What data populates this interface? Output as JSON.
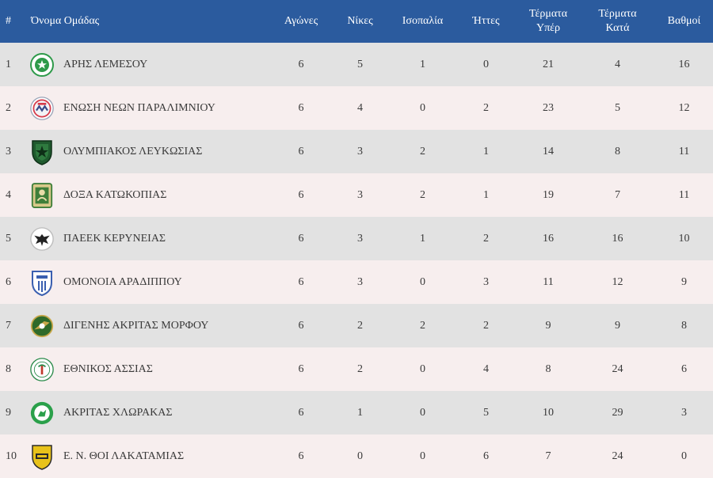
{
  "table": {
    "headers": {
      "rank": "#",
      "team": "Όνομα Ομάδας",
      "played": "Αγώνες",
      "wins": "Νίκες",
      "draws": "Ισοπαλία",
      "losses": "Ήττες",
      "goals_for_1": "Τέρματα",
      "goals_for_2": "Υπέρ",
      "goals_against_1": "Τέρματα",
      "goals_against_2": "Κατά",
      "points": "Βαθμοί"
    },
    "rows": [
      {
        "rank": "1",
        "team": "ΑΡΗΣ ΛΕΜΕΣΟΥ",
        "logo_icon": "aris-limassol-crest-icon",
        "logo_color": "#2e9a4a",
        "played": "6",
        "wins": "5",
        "draws": "1",
        "losses": "0",
        "goals_for": "21",
        "goals_against": "4",
        "points": "16"
      },
      {
        "rank": "2",
        "team": "ΕΝΩΣΗ ΝΕΩΝ ΠΑΡΑΛΙΜΝΙΟΥ",
        "logo_icon": "enp-crest-icon",
        "logo_color": "#d63a4a",
        "played": "6",
        "wins": "4",
        "draws": "0",
        "losses": "2",
        "goals_for": "23",
        "goals_against": "5",
        "points": "12"
      },
      {
        "rank": "3",
        "team": "ΟΛΥΜΠΙΑΚΟΣ ΛΕΥΚΩΣΙΑΣ",
        "logo_icon": "olympiakos-nicosia-crest-icon",
        "logo_color": "#1f5a2e",
        "played": "6",
        "wins": "3",
        "draws": "2",
        "losses": "1",
        "goals_for": "14",
        "goals_against": "8",
        "points": "11"
      },
      {
        "rank": "4",
        "team": "ΔΟΞΑ ΚΑΤΩΚΟΠΙΑΣ",
        "logo_icon": "doxa-katokopias-crest-icon",
        "logo_color": "#3f7f3a",
        "played": "6",
        "wins": "3",
        "draws": "2",
        "losses": "1",
        "goals_for": "19",
        "goals_against": "7",
        "points": "11"
      },
      {
        "rank": "5",
        "team": "ΠΑΕΕΚ ΚΕΡΥΝΕΙΑΣ",
        "logo_icon": "paeek-eagle-crest-icon",
        "logo_color": "#222222",
        "played": "6",
        "wins": "3",
        "draws": "1",
        "losses": "2",
        "goals_for": "16",
        "goals_against": "16",
        "points": "10"
      },
      {
        "rank": "6",
        "team": "ΟΜΟΝΟΙΑ ΑΡΑΔΙΠΠΟΥ",
        "logo_icon": "omonoia-aradippou-crest-icon",
        "logo_color": "#3a5fb0",
        "played": "6",
        "wins": "3",
        "draws": "0",
        "losses": "3",
        "goals_for": "11",
        "goals_against": "12",
        "points": "9"
      },
      {
        "rank": "7",
        "team": "ΔΙΓΕΝΗΣ ΑΚΡΙΤΑΣ ΜΟΡΦΟΥ",
        "logo_icon": "digenis-morfou-crest-icon",
        "logo_color": "#2f6a2a",
        "played": "6",
        "wins": "2",
        "draws": "2",
        "losses": "2",
        "goals_for": "9",
        "goals_against": "9",
        "points": "8"
      },
      {
        "rank": "8",
        "team": "ΕΘΝΙΚΟΣ ΑΣΣΙΑΣ",
        "logo_icon": "ethnikos-assias-crest-icon",
        "logo_color": "#2a8a4a",
        "played": "6",
        "wins": "2",
        "draws": "0",
        "losses": "4",
        "goals_for": "8",
        "goals_against": "24",
        "points": "6"
      },
      {
        "rank": "9",
        "team": "ΑΚΡΙΤΑΣ ΧΛΩΡΑΚΑΣ",
        "logo_icon": "akritas-chlorakas-crest-icon",
        "logo_color": "#2aa04a",
        "played": "6",
        "wins": "1",
        "draws": "0",
        "losses": "5",
        "goals_for": "10",
        "goals_against": "29",
        "points": "3"
      },
      {
        "rank": "10",
        "team": "Ε. Ν. ΘΟΙ ΛΑΚΑΤΑΜΙΑΣ",
        "logo_icon": "thoi-lakatamias-crest-icon",
        "logo_color": "#e8c21a",
        "played": "6",
        "wins": "0",
        "draws": "0",
        "losses": "6",
        "goals_for": "7",
        "goals_against": "24",
        "points": "0"
      }
    ]
  },
  "colors": {
    "header_bg": "#2b5b9e",
    "row_odd": "#e2e2e2",
    "row_even": "#f7eeee",
    "text": "#3a3a3a"
  }
}
